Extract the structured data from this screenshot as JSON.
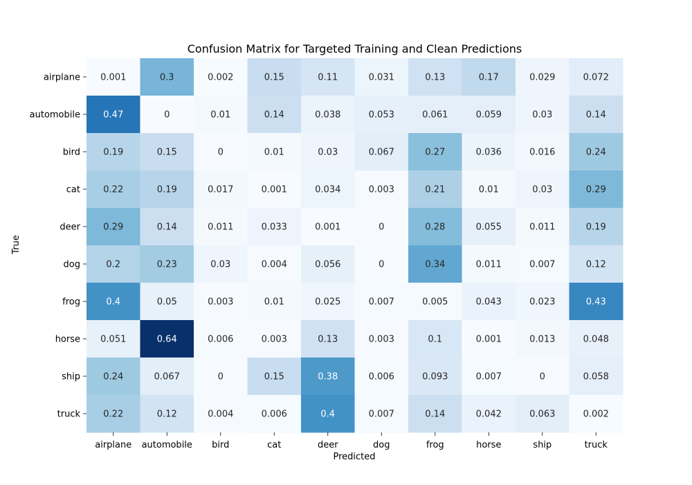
{
  "chart_data": {
    "type": "heatmap",
    "title": "Confusion Matrix for Targeted Training and Clean Predictions",
    "xlabel": "Predicted",
    "ylabel": "True",
    "x_categories": [
      "airplane",
      "automobile",
      "bird",
      "cat",
      "deer",
      "dog",
      "frog",
      "horse",
      "ship",
      "truck"
    ],
    "y_categories": [
      "airplane",
      "automobile",
      "bird",
      "cat",
      "deer",
      "dog",
      "frog",
      "horse",
      "ship",
      "truck"
    ],
    "values": [
      [
        0.001,
        0.3,
        0.002,
        0.15,
        0.11,
        0.031,
        0.13,
        0.17,
        0.029,
        0.072
      ],
      [
        0.47,
        0,
        0.01,
        0.14,
        0.038,
        0.053,
        0.061,
        0.059,
        0.03,
        0.14
      ],
      [
        0.19,
        0.15,
        0,
        0.01,
        0.03,
        0.067,
        0.27,
        0.036,
        0.016,
        0.24
      ],
      [
        0.22,
        0.19,
        0.017,
        0.001,
        0.034,
        0.003,
        0.21,
        0.01,
        0.03,
        0.29
      ],
      [
        0.29,
        0.14,
        0.011,
        0.033,
        0.001,
        0,
        0.28,
        0.055,
        0.011,
        0.19
      ],
      [
        0.2,
        0.23,
        0.03,
        0.004,
        0.056,
        0,
        0.34,
        0.011,
        0.007,
        0.12
      ],
      [
        0.4,
        0.05,
        0.003,
        0.01,
        0.025,
        0.007,
        0.005,
        0.043,
        0.023,
        0.43
      ],
      [
        0.051,
        0.64,
        0.006,
        0.003,
        0.13,
        0.003,
        0.1,
        0.001,
        0.013,
        0.048
      ],
      [
        0.24,
        0.067,
        0,
        0.15,
        0.38,
        0.006,
        0.093,
        0.007,
        0,
        0.058
      ],
      [
        0.22,
        0.12,
        0.004,
        0.006,
        0.4,
        0.007,
        0.14,
        0.042,
        0.063,
        0.002
      ]
    ],
    "colormap": "Blues",
    "vmin": 0,
    "vmax": 0.64,
    "colorbar": false,
    "annotations": true
  }
}
